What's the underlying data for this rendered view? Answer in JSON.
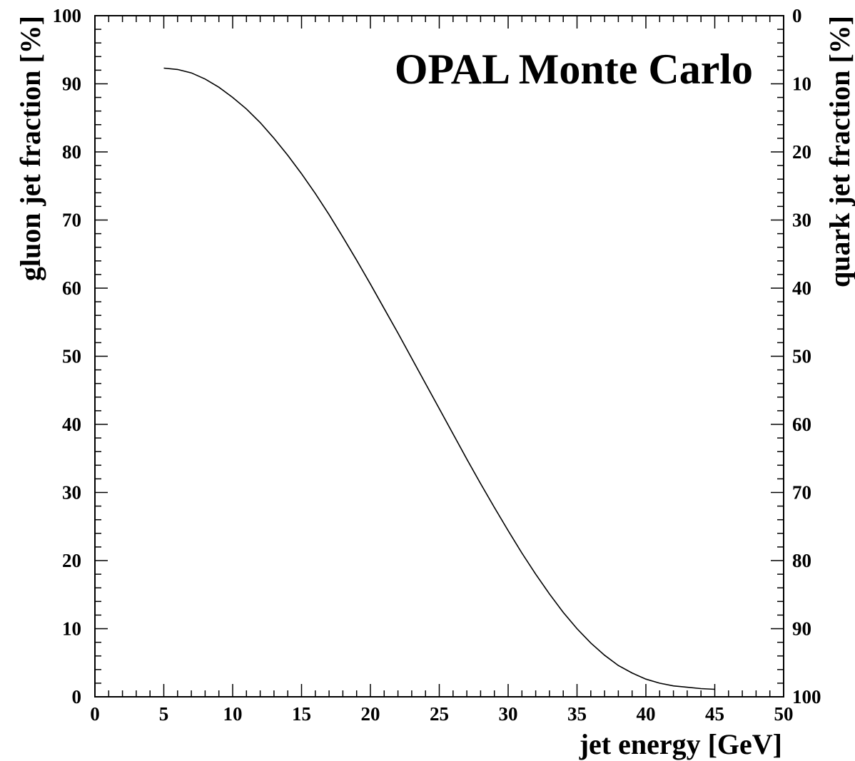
{
  "chart_data": {
    "type": "line",
    "title": "",
    "annotation": "OPAL Monte Carlo",
    "xlabel": "jet energy [GeV]",
    "ylabel": "gluon jet fraction [%]",
    "y2label": "quark jet fraction [%]",
    "xlim": [
      0,
      50
    ],
    "ylim": [
      0,
      100
    ],
    "y2lim": [
      100,
      0
    ],
    "xticks": [
      0,
      5,
      10,
      15,
      20,
      25,
      30,
      35,
      40,
      45,
      50
    ],
    "yticks": [
      0,
      10,
      20,
      30,
      40,
      50,
      60,
      70,
      80,
      90,
      100
    ],
    "y2ticks": [
      100,
      90,
      80,
      70,
      60,
      50,
      40,
      30,
      20,
      10,
      0
    ],
    "grid": false,
    "series": [
      {
        "color": "#000000",
        "x": [
          5,
          6,
          7,
          8,
          9,
          10,
          11,
          12,
          13,
          14,
          15,
          16,
          17,
          18,
          19,
          20,
          21,
          22,
          23,
          24,
          25,
          26,
          27,
          28,
          29,
          30,
          31,
          32,
          33,
          34,
          35,
          36,
          37,
          38,
          39,
          40,
          41,
          42,
          43,
          44,
          45
        ],
        "y": [
          92.3,
          92.1,
          91.6,
          90.7,
          89.5,
          88.0,
          86.3,
          84.3,
          82.0,
          79.5,
          76.8,
          73.9,
          70.8,
          67.5,
          64.1,
          60.6,
          57.0,
          53.4,
          49.7,
          46.0,
          42.3,
          38.6,
          34.9,
          31.3,
          27.8,
          24.4,
          21.1,
          18.0,
          15.1,
          12.4,
          10.0,
          7.9,
          6.1,
          4.6,
          3.5,
          2.6,
          2.0,
          1.6,
          1.4,
          1.2,
          1.1
        ]
      }
    ]
  }
}
